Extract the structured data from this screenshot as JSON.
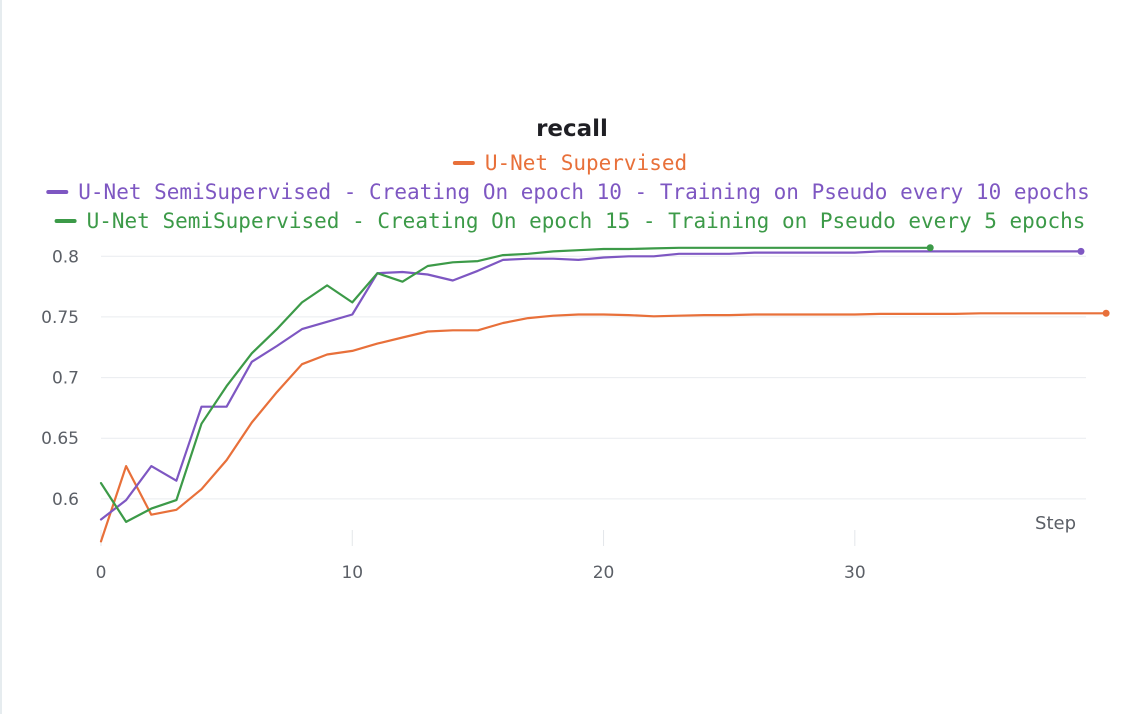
{
  "chart_data": {
    "type": "line",
    "title": "recall",
    "xlabel": "Step",
    "ylabel": "",
    "xlim": [
      0,
      40
    ],
    "ylim": [
      0.562,
      0.82
    ],
    "x_ticks": [
      0,
      10,
      20,
      30
    ],
    "y_ticks": [
      0.6,
      0.65,
      0.7,
      0.75,
      0.8
    ],
    "y_tick_labels": [
      "0.6",
      "0.65",
      "0.7",
      "0.75",
      "0.8"
    ],
    "grid": "horizontal",
    "legend_position": "top",
    "series": [
      {
        "name": "U-Net Supervised",
        "color": "#e8703a",
        "x": [
          0,
          1,
          2,
          3,
          4,
          5,
          6,
          7,
          8,
          9,
          10,
          11,
          12,
          13,
          14,
          15,
          16,
          17,
          18,
          19,
          20,
          21,
          22,
          23,
          24,
          25,
          26,
          27,
          28,
          29,
          30,
          31,
          32,
          33,
          34,
          35,
          36,
          37,
          38,
          39,
          40
        ],
        "y": [
          0.565,
          0.627,
          0.587,
          0.591,
          0.608,
          0.632,
          0.663,
          0.688,
          0.711,
          0.719,
          0.722,
          0.728,
          0.733,
          0.738,
          0.739,
          0.739,
          0.745,
          0.749,
          0.751,
          0.752,
          0.752,
          0.7515,
          0.7505,
          0.751,
          0.7515,
          0.7515,
          0.752,
          0.752,
          0.752,
          0.752,
          0.752,
          0.7525,
          0.7525,
          0.7525,
          0.7525,
          0.753,
          0.753,
          0.753,
          0.753,
          0.753,
          0.753
        ]
      },
      {
        "name": "U-Net SemiSupervised - Creating On epoch 10 - Training on Pseudo every 10 epochs",
        "color": "#7e57c2",
        "x": [
          0,
          1,
          2,
          3,
          4,
          5,
          6,
          7,
          8,
          9,
          10,
          11,
          12,
          13,
          14,
          15,
          16,
          17,
          18,
          19,
          20,
          21,
          22,
          23,
          24,
          25,
          26,
          27,
          28,
          29,
          30,
          31,
          32,
          33,
          34,
          35,
          36,
          37,
          38,
          39
        ],
        "y": [
          0.583,
          0.599,
          0.627,
          0.615,
          0.676,
          0.676,
          0.713,
          0.726,
          0.74,
          0.746,
          0.752,
          0.786,
          0.787,
          0.785,
          0.78,
          0.788,
          0.797,
          0.798,
          0.798,
          0.797,
          0.799,
          0.8,
          0.8,
          0.802,
          0.802,
          0.802,
          0.803,
          0.803,
          0.803,
          0.803,
          0.803,
          0.804,
          0.804,
          0.804,
          0.804,
          0.804,
          0.804,
          0.804,
          0.804,
          0.804
        ]
      },
      {
        "name": "U-Net SemiSupervised - Creating On epoch 15 - Training on Pseudo every 5 epochs",
        "color": "#3c9a48",
        "x": [
          0,
          1,
          2,
          3,
          4,
          5,
          6,
          7,
          8,
          9,
          10,
          11,
          12,
          13,
          14,
          15,
          16,
          17,
          18,
          19,
          20,
          21,
          22,
          23,
          24,
          25,
          26,
          27,
          28,
          29,
          30,
          31,
          32,
          33
        ],
        "y": [
          0.613,
          0.581,
          0.592,
          0.599,
          0.662,
          0.693,
          0.72,
          0.74,
          0.762,
          0.776,
          0.762,
          0.786,
          0.779,
          0.792,
          0.795,
          0.796,
          0.801,
          0.802,
          0.804,
          0.805,
          0.806,
          0.806,
          0.8065,
          0.807,
          0.807,
          0.807,
          0.807,
          0.807,
          0.807,
          0.807,
          0.807,
          0.807,
          0.807,
          0.807
        ]
      }
    ]
  }
}
